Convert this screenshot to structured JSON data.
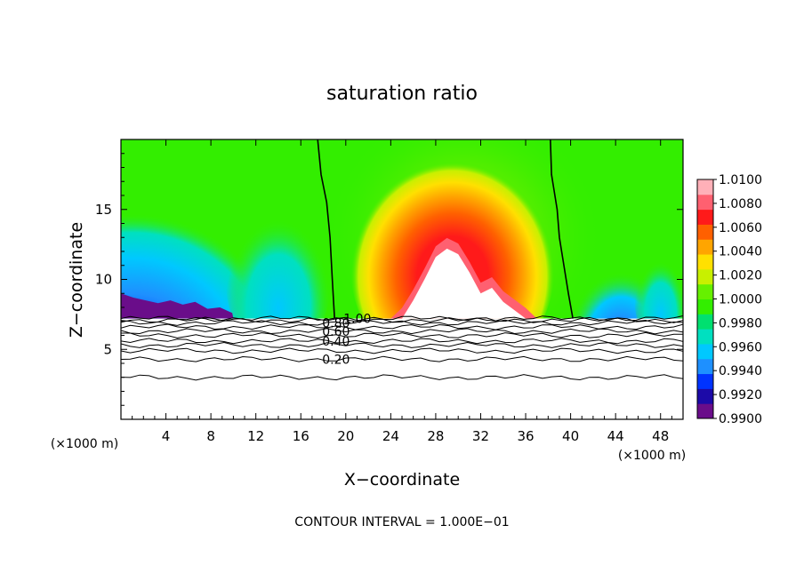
{
  "chart_data": {
    "type": "heatmap",
    "title": "saturation ratio",
    "xlabel": "X−coordinate",
    "ylabel": "Z−coordinate",
    "x_unit_left": "(×1000 m)",
    "x_unit_right": "(×1000 m)",
    "footer": "CONTOUR INTERVAL = 1.000E−01",
    "xlim": [
      0,
      50
    ],
    "ylim": [
      0,
      20
    ],
    "x_ticks": [
      4,
      8,
      12,
      16,
      20,
      24,
      28,
      32,
      36,
      40,
      44,
      48
    ],
    "x_tick_labels": [
      "4",
      "8",
      "12",
      "16",
      "20",
      "24",
      "28",
      "32",
      "36",
      "40",
      "44",
      "48"
    ],
    "y_ticks": [
      5,
      10,
      15
    ],
    "y_tick_labels": [
      "5",
      "10",
      "15"
    ],
    "colorbar": {
      "min": 0.99,
      "max": 1.01,
      "labels": [
        "1.0100",
        "1.0080",
        "1.0060",
        "1.0040",
        "1.0020",
        "1.0000",
        "0.9980",
        "0.9960",
        "0.9940",
        "0.9920",
        "0.9900"
      ],
      "values": [
        1.01,
        1.008,
        1.006,
        1.004,
        1.002,
        1.0,
        0.998,
        0.996,
        0.994,
        0.992,
        0.99
      ],
      "colors_low_to_high": [
        "#6a0d8a",
        "#1c0aa8",
        "#0033ff",
        "#1e90ff",
        "#00c8ff",
        "#00e0c0",
        "#00e070",
        "#33ee00",
        "#66f000",
        "#c8f000",
        "#ffe000",
        "#ffa500",
        "#ff6000",
        "#ff1a1a",
        "#ff6070",
        "#ffb0b8"
      ]
    },
    "cloud_base_z": 7.2,
    "field_top_z": 20,
    "contours": [
      {
        "label": "1.00",
        "z": 7.2
      },
      {
        "label": "0.80",
        "z": 6.9
      },
      {
        "label": "0.60",
        "z": 6.3
      },
      {
        "label": "0.40",
        "z": 5.6
      },
      {
        "label": "0.20",
        "z": 4.3
      }
    ],
    "extra_contour_levels_z": [
      7.1,
      6.6,
      6.0,
      5.3,
      4.9,
      3.0
    ],
    "unity_contours": [
      {
        "x": [
          17.5,
          17.8,
          18.3,
          18.6,
          18.8,
          19.0
        ],
        "z": [
          20,
          17.5,
          15.5,
          13,
          10,
          7.2
        ]
      },
      {
        "x": [
          38.2,
          38.3,
          38.8,
          39.0,
          39.4,
          39.8,
          40.2
        ],
        "z": [
          20,
          17.5,
          15,
          13,
          11,
          9,
          7.2
        ]
      }
    ],
    "cloud_hole_x": [
      25,
      26,
      27,
      28,
      29,
      30,
      31,
      32,
      33,
      34,
      35,
      36
    ],
    "cloud_hole_z": [
      7.2,
      8.5,
      10.0,
      11.6,
      12.2,
      11.8,
      10.5,
      9.0,
      9.4,
      8.4,
      7.8,
      7.2
    ]
  }
}
